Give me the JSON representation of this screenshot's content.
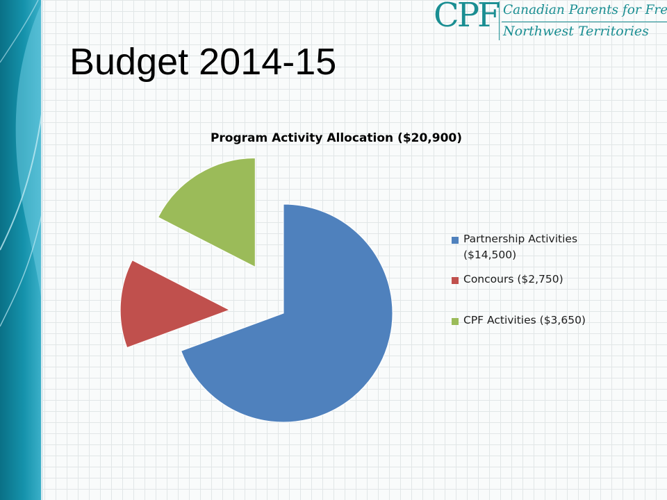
{
  "slide": {
    "title": "Budget 2014-15"
  },
  "logo": {
    "mark": "CPF",
    "line1": "Canadian Parents for French",
    "line2": "Northwest Territories",
    "color": "#1a8e92"
  },
  "colors": {
    "band_dark": "#0f7f96",
    "band_light": "#5ec5dc",
    "grid": "#e1e6e7"
  },
  "chart_data": {
    "type": "pie",
    "title": "Program Activity Allocation  ($20,900)",
    "total": 20900,
    "legend_position": "right",
    "exploded": true,
    "slices": [
      {
        "label": "Partnership Activities ($14,500)",
        "value": 14500,
        "color": "#4f81bd"
      },
      {
        "label": "Concours ($2,750)",
        "value": 2750,
        "color": "#c0504d"
      },
      {
        "label": "CPF Activities ($3,650)",
        "value": 3650,
        "color": "#9bbb59"
      }
    ]
  }
}
